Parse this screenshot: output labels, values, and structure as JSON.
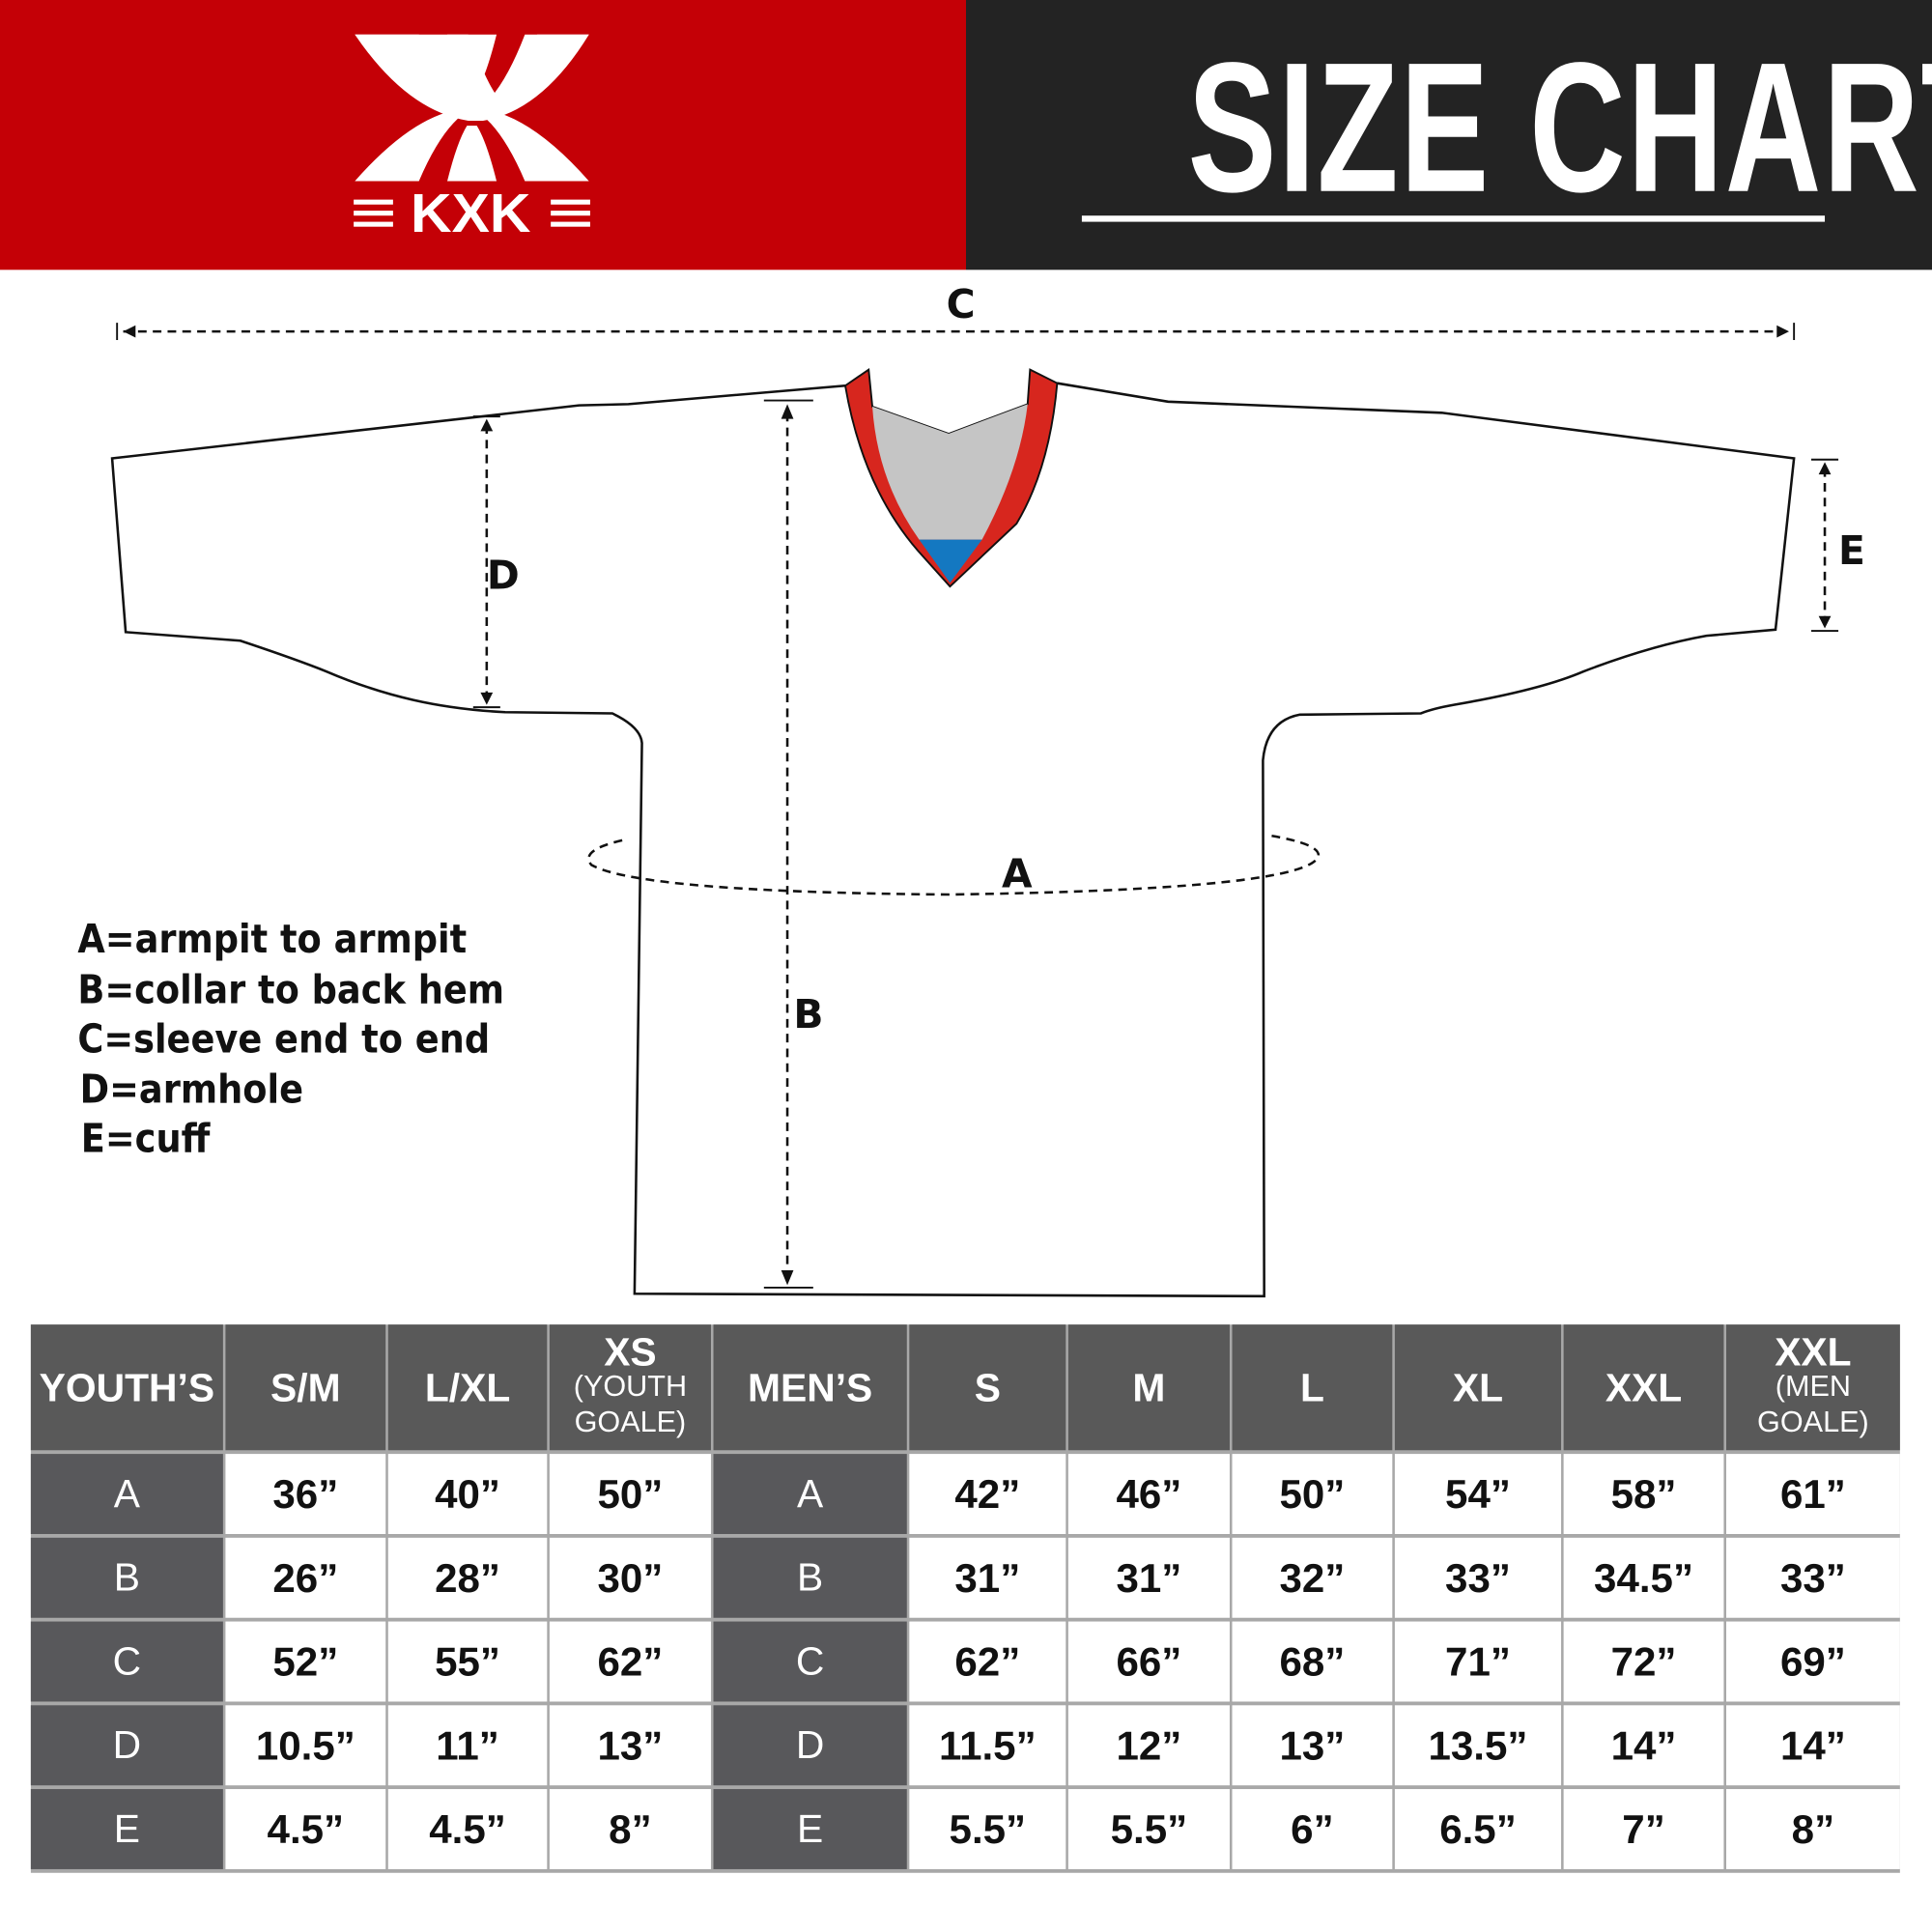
{
  "brand": {
    "logo_text": "KXK",
    "colors": {
      "red": "#c40006",
      "dark": "#232323"
    }
  },
  "header": {
    "title": "SIZE CHART"
  },
  "diagram": {
    "labels": {
      "A": "A",
      "B": "B",
      "C": "C",
      "D": "D",
      "E": "E"
    },
    "legend": [
      "A=armpit to armpit",
      "B=collar to back hem",
      "C=sleeve end to end",
      "D=armhole",
      "E=cuff"
    ]
  },
  "table": {
    "youth": {
      "header": "YOUTH’S",
      "columns": [
        {
          "size": "S/M",
          "note": ""
        },
        {
          "size": "L/XL",
          "note": ""
        },
        {
          "size": "XS",
          "note": "(YOUTH GOALE)"
        }
      ]
    },
    "men": {
      "header": "MEN’S",
      "columns": [
        {
          "size": "S",
          "note": ""
        },
        {
          "size": "M",
          "note": ""
        },
        {
          "size": "L",
          "note": ""
        },
        {
          "size": "XL",
          "note": ""
        },
        {
          "size": "XXL",
          "note": ""
        },
        {
          "size": "XXL",
          "note": "(MEN GOALE)"
        }
      ]
    },
    "rows": [
      {
        "label": "A",
        "youth": [
          "36”",
          "40”",
          "50”"
        ],
        "men": [
          "42”",
          "46”",
          "50”",
          "54”",
          "58”",
          "61”"
        ]
      },
      {
        "label": "B",
        "youth": [
          "26”",
          "28”",
          "30”"
        ],
        "men": [
          "31”",
          "31”",
          "32”",
          "33”",
          "34.5”",
          "33”"
        ]
      },
      {
        "label": "C",
        "youth": [
          "52”",
          "55”",
          "62”"
        ],
        "men": [
          "62”",
          "66”",
          "68”",
          "71”",
          "72”",
          "69”"
        ]
      },
      {
        "label": "D",
        "youth": [
          "10.5”",
          "11”",
          "13”"
        ],
        "men": [
          "11.5”",
          "12”",
          "13”",
          "13.5”",
          "14”",
          "14”"
        ]
      },
      {
        "label": "E",
        "youth": [
          "4.5”",
          "4.5”",
          "8”"
        ],
        "men": [
          "5.5”",
          "5.5”",
          "6”",
          "6.5”",
          "7”",
          "8”"
        ]
      }
    ]
  }
}
